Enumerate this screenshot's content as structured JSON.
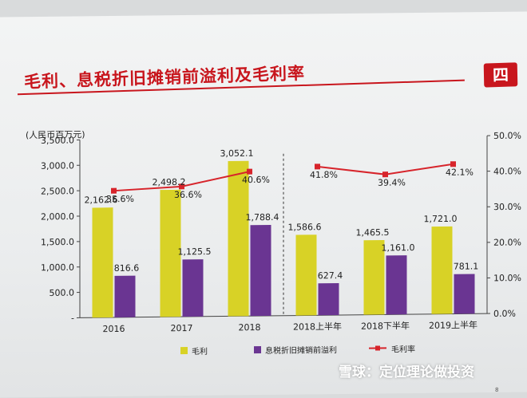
{
  "slide": {
    "title": "毛利、息税折旧摊销前溢利及毛利率",
    "logo_text": "四",
    "unit_label": "(人民币百万元)",
    "page_number": "8"
  },
  "watermark": "雪球：定位理论做投资",
  "chart_data": {
    "type": "bar",
    "categories": [
      "2016",
      "2017",
      "2018",
      "2018上半年",
      "2018下半年",
      "2019上半年"
    ],
    "series": [
      {
        "name": "毛利",
        "type": "bar",
        "color": "#d8d226",
        "values": [
          2162.6,
          2498.2,
          3052.1,
          1586.6,
          1465.5,
          1721.0
        ],
        "labels": [
          "2,162.6",
          "2,498.2",
          "3,052.1",
          "1,586.6",
          "1,465.5",
          "1,721.0"
        ]
      },
      {
        "name": "息税折旧摊销前溢利",
        "type": "bar",
        "color": "#6a3592",
        "values": [
          816.6,
          1125.5,
          1788.4,
          627.4,
          1161.0,
          781.1
        ],
        "labels": [
          "816.6",
          "1,125.5",
          "1,788.4",
          "627.4",
          "1,161.0",
          "781.1"
        ]
      },
      {
        "name": "毛利率",
        "type": "line",
        "axis": "right",
        "color": "#d7242b",
        "values": [
          35.6,
          36.6,
          40.6,
          41.8,
          39.4,
          42.1
        ],
        "labels": [
          "35.6%",
          "36.6%",
          "40.6%",
          "41.8%",
          "39.4%",
          "42.1%"
        ]
      }
    ],
    "line_groups": [
      [
        0,
        1,
        2
      ],
      [
        3,
        4,
        5
      ]
    ],
    "y_left": {
      "ticks": [
        "3,500.0",
        "3,000.0",
        "2,500.0",
        "2,000.0",
        "1,500.0",
        "1,000.0",
        "500.0",
        "-"
      ],
      "tick_values": [
        3500,
        3000,
        2500,
        2000,
        1500,
        1000,
        500,
        0
      ],
      "ylim": [
        0,
        3500
      ]
    },
    "y_right": {
      "ticks": [
        "50.0%",
        "40.0%",
        "30.0%",
        "20.0%",
        "10.0%",
        "0.0%"
      ],
      "tick_values": [
        50,
        40,
        30,
        20,
        10,
        0
      ],
      "ylim": [
        0,
        50
      ]
    },
    "divider_after_index": 2,
    "grid": false,
    "legend": "bottom"
  }
}
